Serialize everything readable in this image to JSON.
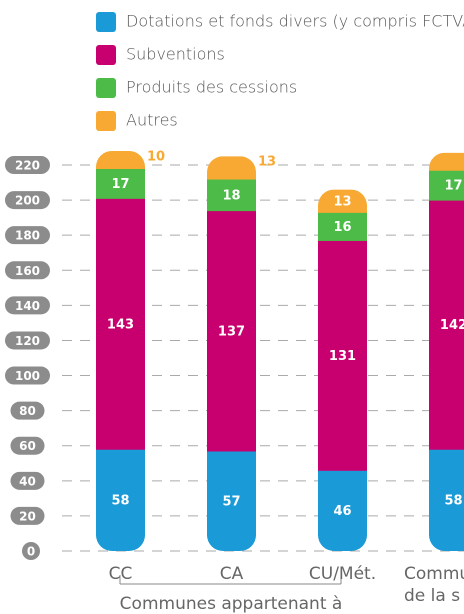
{
  "chart_data": {
    "type": "stacked_bar",
    "categories": [
      "CC",
      "CA",
      "CU/Mét.",
      "Commu"
    ],
    "group_labels": [
      "Communes appartenant à",
      "de la s"
    ],
    "series": [
      {
        "name": "Dotations et fonds divers (y compris FCTVA)",
        "color": "#1a9ad6",
        "values": [
          58,
          57,
          46,
          58
        ]
      },
      {
        "name": "Subventions",
        "color": "#c8006f",
        "values": [
          143,
          137,
          131,
          142
        ]
      },
      {
        "name": "Produits des cessions",
        "color": "#4cbb47",
        "values": [
          17,
          18,
          16,
          17
        ]
      },
      {
        "name": "Autres",
        "color": "#f7a934",
        "values": [
          10,
          13,
          13,
          10
        ]
      }
    ],
    "ylim": [
      0,
      220
    ],
    "yticks": [
      0,
      20,
      40,
      60,
      80,
      100,
      120,
      140,
      160,
      180,
      200,
      220
    ],
    "grid": true
  }
}
